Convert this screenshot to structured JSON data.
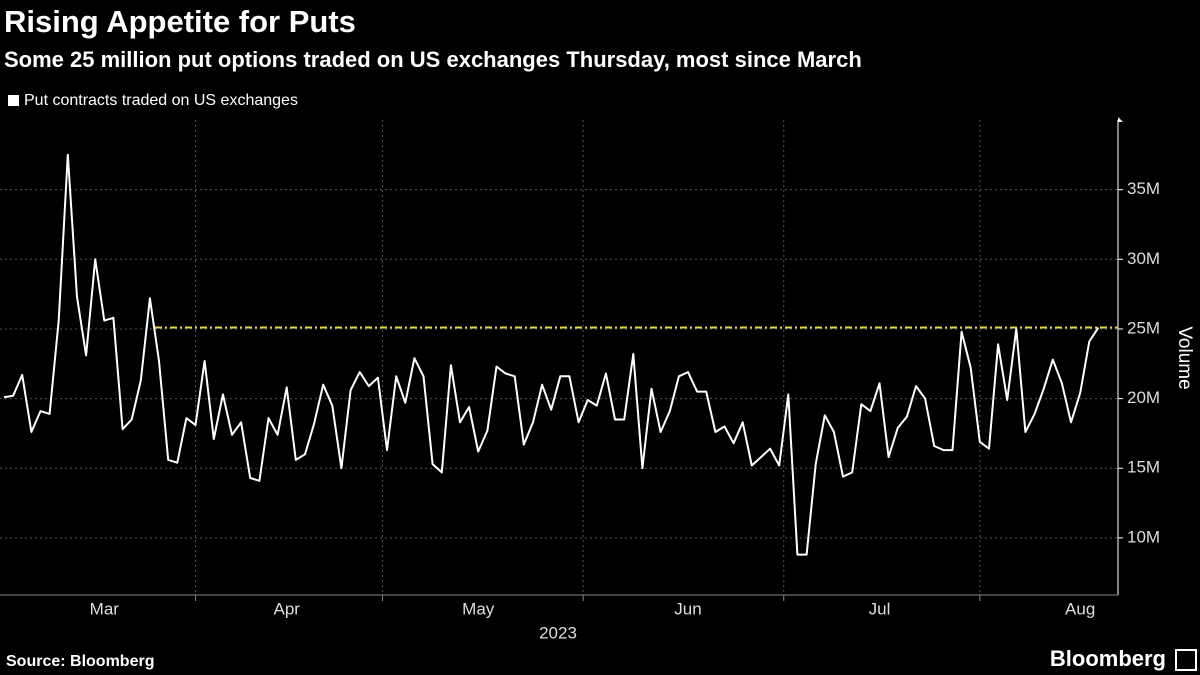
{
  "chart_data": {
    "type": "line",
    "title": "Rising Appetite for Puts",
    "subtitle": "Some 25 million put options traded on US exchanges Thursday, most since March",
    "xlabel": "2023",
    "ylabel": "Volume",
    "source": "Source: Bloomberg",
    "logo": "Bloomberg",
    "categories": [
      null,
      null,
      null,
      null,
      null,
      null,
      null,
      null,
      null,
      null,
      null,
      "Mar",
      null,
      null,
      null,
      null,
      null,
      null,
      null,
      null,
      null,
      null,
      null,
      null,
      null,
      null,
      null,
      null,
      null,
      null,
      null,
      "Apr",
      null,
      null,
      null,
      null,
      null,
      null,
      null,
      null,
      null,
      null,
      null,
      null,
      null,
      null,
      null,
      null,
      null,
      null,
      null,
      null,
      "May",
      null,
      null,
      null,
      null,
      null,
      null,
      null,
      null,
      null,
      null,
      null,
      null,
      null,
      null,
      null,
      null,
      null,
      null,
      null,
      null,
      null,
      null,
      "Jun",
      null,
      null,
      null,
      null,
      null,
      null,
      null,
      null,
      null,
      null,
      null,
      null,
      null,
      null,
      null,
      null,
      null,
      null,
      null,
      null,
      "Jul",
      null,
      null,
      null,
      null,
      null,
      null,
      null,
      null,
      null,
      null,
      null,
      null,
      null,
      null,
      null,
      null,
      null,
      null,
      null,
      null,
      null,
      "Aug",
      null,
      null
    ],
    "series": [
      {
        "name": "Put contracts traded on US exchanges",
        "color": "#ffffff",
        "values": [
          20.1,
          20.2,
          21.7,
          17.6,
          19.1,
          18.9,
          25.6,
          37.5,
          27.3,
          23.1,
          30.0,
          25.6,
          25.8,
          17.8,
          18.5,
          21.3,
          27.2,
          22.7,
          15.6,
          15.4,
          18.6,
          18.1,
          22.7,
          17.1,
          20.3,
          17.4,
          18.3,
          14.3,
          14.1,
          18.6,
          17.4,
          20.8,
          15.6,
          16.0,
          18.2,
          21.0,
          19.5,
          15.0,
          20.6,
          21.9,
          20.9,
          21.5,
          16.3,
          21.6,
          19.7,
          22.9,
          21.6,
          15.3,
          14.7,
          22.4,
          18.3,
          19.4,
          16.2,
          17.7,
          22.3,
          21.8,
          21.6,
          16.7,
          18.3,
          21.0,
          19.2,
          21.6,
          21.6,
          18.3,
          19.9,
          19.5,
          21.8,
          18.5,
          18.5,
          23.2,
          15.0,
          20.7,
          17.6,
          19.1,
          21.6,
          21.9,
          20.5,
          20.5,
          17.6,
          18.0,
          16.8,
          18.3,
          15.2,
          15.8,
          16.4,
          15.2,
          20.3,
          8.8,
          8.8,
          15.3,
          18.8,
          17.6,
          14.4,
          14.7,
          19.6,
          19.1,
          21.1,
          15.8,
          17.9,
          18.7,
          20.9,
          20.0,
          16.6,
          16.3,
          16.3,
          24.8,
          22.2,
          16.9,
          16.4,
          23.9,
          19.9,
          25.0,
          17.6,
          18.9,
          20.7,
          22.8,
          21.1,
          18.3,
          20.4,
          24.1,
          25.1
        ]
      }
    ],
    "reference_line": {
      "value": 25.1,
      "color": "#e8d44d"
    },
    "ylim": [
      5.9,
      40
    ],
    "yticks": [
      {
        "value": 10,
        "label": "10M"
      },
      {
        "value": 15,
        "label": "15M"
      },
      {
        "value": 20,
        "label": "20M"
      },
      {
        "value": 25,
        "label": "25M"
      },
      {
        "value": 30,
        "label": "30M"
      },
      {
        "value": 35,
        "label": "35M"
      }
    ],
    "grid": true
  }
}
